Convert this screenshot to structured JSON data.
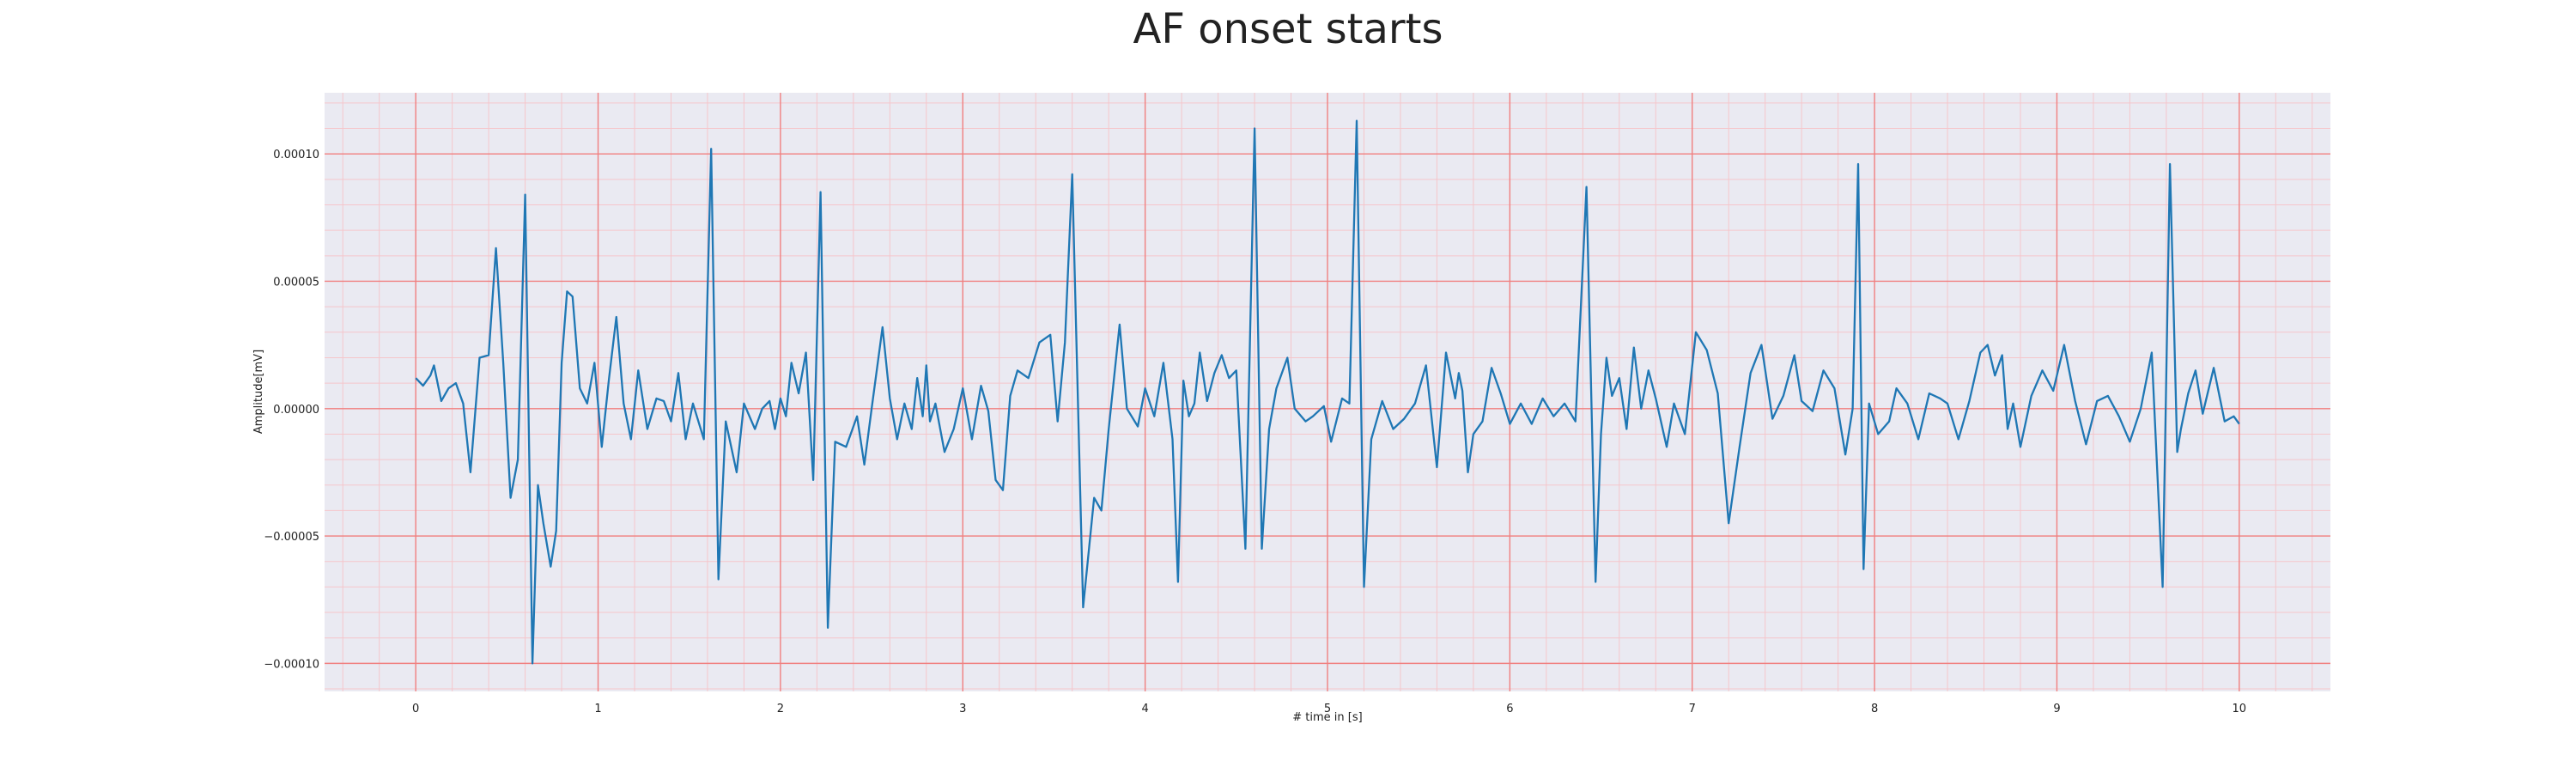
{
  "chart_data": {
    "type": "line",
    "title": "AF onset starts",
    "xlabel": "# time in [s]",
    "ylabel": "Amplitude[mV]",
    "xlim": [
      -0.5,
      10.5
    ],
    "ylim": [
      -0.000111,
      0.000124
    ],
    "xticks": [
      0,
      1,
      2,
      3,
      4,
      5,
      6,
      7,
      8,
      9,
      10
    ],
    "xtick_labels": [
      "0",
      "1",
      "2",
      "3",
      "4",
      "5",
      "6",
      "7",
      "8",
      "9",
      "10"
    ],
    "yticks": [
      -0.0001,
      -5e-05,
      0.0,
      5e-05,
      0.0001
    ],
    "ytick_labels": [
      "−0.00010",
      "−0.00005",
      "0.00000",
      "0.00005",
      "0.00010"
    ],
    "grid": true,
    "minor_grid": true,
    "colors": {
      "line": "#1f77b4",
      "grid_major": "#f08080",
      "grid_minor": "#f5c6cb",
      "plot_bg": "#eaeaf2"
    },
    "series": [
      {
        "x": [
          0.0,
          0.04,
          0.08,
          0.1,
          0.14,
          0.18,
          0.22,
          0.26,
          0.3,
          0.35,
          0.4,
          0.44,
          0.48,
          0.52,
          0.56,
          0.6,
          0.64,
          0.67,
          0.7,
          0.74,
          0.77,
          0.8,
          0.83,
          0.86,
          0.9,
          0.94,
          0.98,
          1.02,
          1.06,
          1.1,
          1.14,
          1.18,
          1.22,
          1.27,
          1.32,
          1.36,
          1.4,
          1.44,
          1.48,
          1.52,
          1.58,
          1.62,
          1.66,
          1.7,
          1.76,
          1.8,
          1.86,
          1.9,
          1.94,
          1.97,
          2.0,
          2.03,
          2.06,
          2.1,
          2.14,
          2.18,
          2.22,
          2.26,
          2.3,
          2.36,
          2.42,
          2.46,
          2.5,
          2.56,
          2.6,
          2.64,
          2.68,
          2.72,
          2.75,
          2.78,
          2.8,
          2.82,
          2.85,
          2.9,
          2.95,
          3.0,
          3.05,
          3.1,
          3.14,
          3.18,
          3.22,
          3.26,
          3.3,
          3.36,
          3.42,
          3.48,
          3.52,
          3.56,
          3.6,
          3.66,
          3.72,
          3.76,
          3.8,
          3.86,
          3.9,
          3.96,
          4.0,
          4.05,
          4.1,
          4.15,
          4.18,
          4.21,
          4.24,
          4.27,
          4.3,
          4.34,
          4.38,
          4.42,
          4.46,
          4.5,
          4.55,
          4.6,
          4.64,
          4.68,
          4.72,
          4.78,
          4.82,
          4.88,
          4.92,
          4.98,
          5.02,
          5.08,
          5.12,
          5.16,
          5.2,
          5.24,
          5.3,
          5.36,
          5.42,
          5.48,
          5.54,
          5.6,
          5.65,
          5.7,
          5.72,
          5.74,
          5.77,
          5.8,
          5.85,
          5.9,
          5.95,
          6.0,
          6.06,
          6.12,
          6.18,
          6.24,
          6.3,
          6.36,
          6.42,
          6.47,
          6.5,
          6.53,
          6.56,
          6.6,
          6.64,
          6.68,
          6.72,
          6.76,
          6.8,
          6.86,
          6.9,
          6.96,
          7.02,
          7.08,
          7.14,
          7.2,
          7.26,
          7.32,
          7.38,
          7.44,
          7.5,
          7.56,
          7.6,
          7.66,
          7.72,
          7.78,
          7.84,
          7.88,
          7.91,
          7.94,
          7.97,
          8.02,
          8.08,
          8.12,
          8.18,
          8.24,
          8.3,
          8.36,
          8.4,
          8.46,
          8.52,
          8.58,
          8.62,
          8.66,
          8.7,
          8.73,
          8.76,
          8.8,
          8.86,
          8.92,
          8.98,
          9.04,
          9.1,
          9.16,
          9.22,
          9.28,
          9.34,
          9.4,
          9.46,
          9.52,
          9.58,
          9.62,
          9.66,
          9.68,
          9.72,
          9.76,
          9.8,
          9.86,
          9.92,
          9.97,
          10.0
        ],
        "y": [
          1.2e-05,
          9e-06,
          1.3e-05,
          1.7e-05,
          3e-06,
          8e-06,
          1e-05,
          2e-06,
          -2.5e-05,
          2e-05,
          2.1e-05,
          6.3e-05,
          1.8e-05,
          -3.5e-05,
          -2e-05,
          8.4e-05,
          -0.0001,
          -3e-05,
          -4.5e-05,
          -6.2e-05,
          -4.8e-05,
          1.8e-05,
          4.6e-05,
          4.4e-05,
          8e-06,
          2e-06,
          1.8e-05,
          -1.5e-05,
          1.2e-05,
          3.6e-05,
          2e-06,
          -1.2e-05,
          1.5e-05,
          -8e-06,
          4e-06,
          3e-06,
          -5e-06,
          1.4e-05,
          -1.2e-05,
          2e-06,
          -1.2e-05,
          0.000102,
          -6.7e-05,
          -5e-06,
          -2.5e-05,
          2e-06,
          -8e-06,
          0.0,
          3e-06,
          -8e-06,
          4e-06,
          -3e-06,
          1.8e-05,
          6e-06,
          2.2e-05,
          -2.8e-05,
          8.5e-05,
          -8.6e-05,
          -1.3e-05,
          -1.5e-05,
          -3e-06,
          -2.2e-05,
          0.0,
          3.2e-05,
          4e-06,
          -1.2e-05,
          2e-06,
          -8e-06,
          1.2e-05,
          -3e-06,
          1.7e-05,
          -5e-06,
          2e-06,
          -1.7e-05,
          -8e-06,
          8e-06,
          -1.2e-05,
          9e-06,
          -1e-06,
          -2.8e-05,
          -3.2e-05,
          5e-06,
          1.5e-05,
          1.2e-05,
          2.6e-05,
          2.9e-05,
          -5e-06,
          2.6e-05,
          9.2e-05,
          -7.8e-05,
          -3.5e-05,
          -4e-05,
          -8e-06,
          3.3e-05,
          0.0,
          -7e-06,
          8e-06,
          -3e-06,
          1.8e-05,
          -1.2e-05,
          -6.8e-05,
          1.1e-05,
          -3e-06,
          2e-06,
          2.2e-05,
          3e-06,
          1.4e-05,
          2.1e-05,
          1.2e-05,
          1.5e-05,
          -5.5e-05,
          0.00011,
          -5.5e-05,
          -8e-06,
          8e-06,
          2e-05,
          0.0,
          -5e-06,
          -3e-06,
          1e-06,
          -1.3e-05,
          4e-06,
          2e-06,
          0.000113,
          -7e-05,
          -1.2e-05,
          3e-06,
          -8e-06,
          -4e-06,
          2e-06,
          1.7e-05,
          -2.3e-05,
          2.2e-05,
          4e-06,
          1.4e-05,
          7e-06,
          -2.5e-05,
          -1e-05,
          -5e-06,
          1.6e-05,
          6e-06,
          -6e-06,
          2e-06,
          -6e-06,
          4e-06,
          -3e-06,
          2e-06,
          -5e-06,
          8.7e-05,
          -6.8e-05,
          -1e-05,
          2e-05,
          5e-06,
          1.2e-05,
          -8e-06,
          2.4e-05,
          0.0,
          1.5e-05,
          4e-06,
          -1.5e-05,
          2e-06,
          -1e-05,
          3e-05,
          2.3e-05,
          6e-06,
          -4.5e-05,
          -1.5e-05,
          1.4e-05,
          2.5e-05,
          -4e-06,
          5e-06,
          2.1e-05,
          3e-06,
          -1e-06,
          1.5e-05,
          8e-06,
          -1.8e-05,
          0.0,
          9.6e-05,
          -6.3e-05,
          2e-06,
          -1e-05,
          -5e-06,
          8e-06,
          2e-06,
          -1.2e-05,
          6e-06,
          4e-06,
          2e-06,
          -1.2e-05,
          3e-06,
          2.2e-05,
          2.5e-05,
          1.3e-05,
          2.1e-05,
          -8e-06,
          2e-06,
          -1.5e-05,
          5e-06,
          1.5e-05,
          7e-06,
          2.5e-05,
          3e-06,
          -1.4e-05,
          3e-06,
          5e-06,
          -3e-06,
          -1.3e-05,
          0.0,
          2.2e-05,
          -7e-05,
          9.6e-05,
          -1.7e-05,
          -8e-06,
          6e-06,
          1.5e-05,
          -2e-06,
          1.6e-05,
          -5e-06,
          -3e-06,
          -6e-06
        ]
      }
    ]
  }
}
